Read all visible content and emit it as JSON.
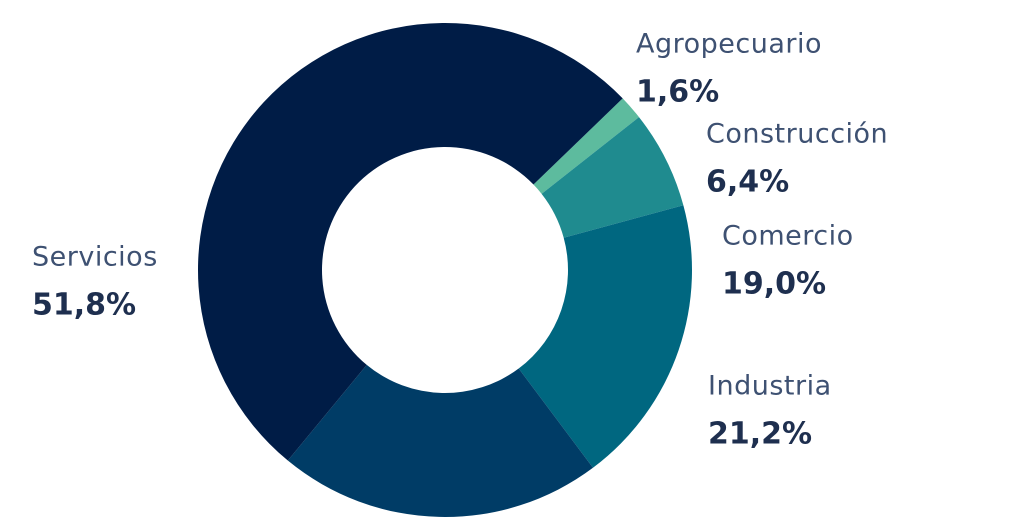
{
  "chart_data": {
    "type": "donut",
    "categories": [
      "Agropecuario",
      "Construcción",
      "Comercio",
      "Industria",
      "Servicios"
    ],
    "values": [
      1.6,
      6.4,
      19.0,
      21.2,
      51.8
    ],
    "value_labels": [
      "1,6%",
      "6,4%",
      "19,0%",
      "21,2%",
      "51,8%"
    ],
    "colors": [
      "#5dbb9e",
      "#1f8b8f",
      "#006780",
      "#003c66",
      "#001c46"
    ]
  }
}
